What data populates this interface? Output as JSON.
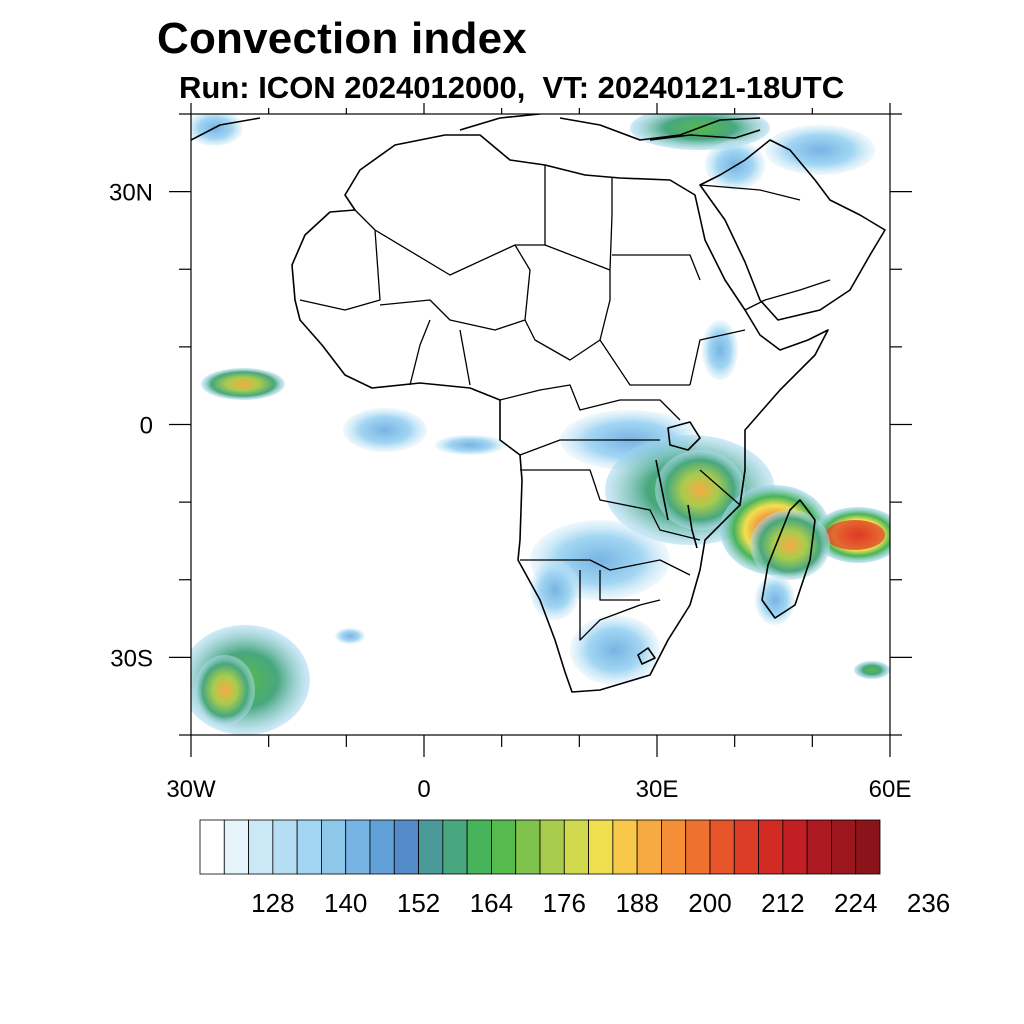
{
  "title": "Convection index",
  "subtitle": "Run: ICON 2024012000,  VT: 20240121-18UTC",
  "map": {
    "lon_range": [
      -30,
      60
    ],
    "lat_range": [
      -40,
      40
    ],
    "x_ticks": [
      {
        "lon": -30,
        "label": "30W"
      },
      {
        "lon": 0,
        "label": "0"
      },
      {
        "lon": 30,
        "label": "30E"
      },
      {
        "lon": 60,
        "label": "60E"
      }
    ],
    "y_ticks": [
      {
        "lat": 30,
        "label": "30N"
      },
      {
        "lat": 0,
        "label": "0"
      },
      {
        "lat": -30,
        "label": "30S"
      }
    ]
  },
  "colorbar": {
    "colors": [
      "#ffffff",
      "#e6f4fb",
      "#cbe8f6",
      "#b5def4",
      "#a2d6f3",
      "#8dc8ea",
      "#78b4e3",
      "#62a0d8",
      "#538bc8",
      "#4a9a9a",
      "#48a77e",
      "#47b35b",
      "#56ba4c",
      "#7fc34c",
      "#a8cc4e",
      "#d1d94f",
      "#f0e04f",
      "#f7c84a",
      "#f7aa41",
      "#f48f37",
      "#ee7130",
      "#e65429",
      "#dc3b25",
      "#d22b24",
      "#c21f25",
      "#ad1a22",
      "#9b171d",
      "#8b141a"
    ],
    "labels": [
      "128",
      "140",
      "152",
      "164",
      "176",
      "188",
      "200",
      "212",
      "224",
      "236"
    ]
  }
}
